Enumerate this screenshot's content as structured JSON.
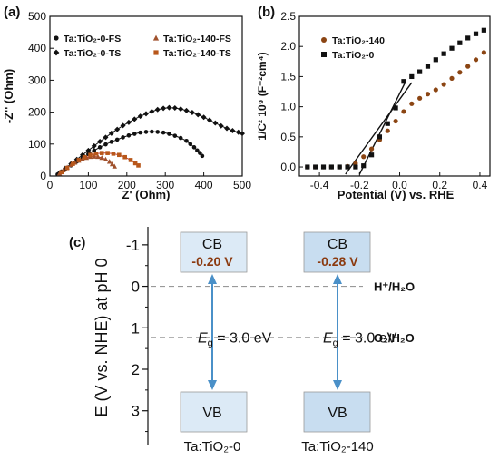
{
  "panels": {
    "a": {
      "label": "(a)",
      "chart_data": {
        "type": "scatter",
        "xlabel": "Z' (Ohm)",
        "ylabel": "-Z'' (Ohm)",
        "xlim": [
          0,
          500
        ],
        "ylim": [
          0,
          500
        ],
        "x_ticks": [
          "0",
          "100",
          "200",
          "300",
          "400",
          "500"
        ],
        "y_ticks": [
          "0",
          "100",
          "200",
          "300",
          "400",
          "500"
        ],
        "legend_position": "top",
        "series": [
          {
            "name": "Ta:TiO₂-0-FS",
            "marker": "circle",
            "color": "#111111",
            "points": [
              [
                20,
                5
              ],
              [
                30,
                14
              ],
              [
                40,
                22
              ],
              [
                55,
                33
              ],
              [
                70,
                45
              ],
              [
                85,
                57
              ],
              [
                100,
                69
              ],
              [
                115,
                80
              ],
              [
                130,
                90
              ],
              [
                145,
                99
              ],
              [
                160,
                107
              ],
              [
                175,
                114
              ],
              [
                190,
                121
              ],
              [
                205,
                127
              ],
              [
                220,
                132
              ],
              [
                235,
                136
              ],
              [
                250,
                138
              ],
              [
                265,
                139
              ],
              [
                280,
                138
              ],
              [
                295,
                136
              ],
              [
                310,
                132
              ],
              [
                325,
                126
              ],
              [
                340,
                119
              ],
              [
                355,
                110
              ],
              [
                365,
                100
              ],
              [
                375,
                90
              ],
              [
                383,
                80
              ],
              [
                390,
                72
              ],
              [
                396,
                63
              ]
            ]
          },
          {
            "name": "Ta:TiO₂-0-TS",
            "marker": "diamond",
            "color": "#111111",
            "points": [
              [
                25,
                10
              ],
              [
                40,
                24
              ],
              [
                55,
                38
              ],
              [
                70,
                52
              ],
              [
                85,
                66
              ],
              [
                100,
                80
              ],
              [
                115,
                94
              ],
              [
                130,
                108
              ],
              [
                145,
                121
              ],
              [
                160,
                134
              ],
              [
                175,
                146
              ],
              [
                190,
                158
              ],
              [
                205,
                168
              ],
              [
                220,
                178
              ],
              [
                235,
                187
              ],
              [
                250,
                195
              ],
              [
                265,
                202
              ],
              [
                280,
                208
              ],
              [
                295,
                212
              ],
              [
                310,
                214
              ],
              [
                325,
                213
              ],
              [
                340,
                210
              ],
              [
                355,
                205
              ],
              [
                370,
                199
              ],
              [
                385,
                192
              ],
              [
                400,
                184
              ],
              [
                415,
                175
              ],
              [
                430,
                166
              ],
              [
                445,
                157
              ],
              [
                460,
                149
              ],
              [
                475,
                142
              ],
              [
                490,
                137
              ],
              [
                500,
                133
              ]
            ]
          },
          {
            "name": "Ta:TiO₂-140-FS",
            "marker": "triangle",
            "color": "#A0522D",
            "points": [
              [
                25,
                8
              ],
              [
                35,
                18
              ],
              [
                45,
                27
              ],
              [
                55,
                35
              ],
              [
                65,
                42
              ],
              [
                75,
                48
              ],
              [
                85,
                53
              ],
              [
                95,
                57
              ],
              [
                105,
                60
              ],
              [
                115,
                61
              ],
              [
                125,
                60
              ],
              [
                135,
                57
              ],
              [
                145,
                52
              ],
              [
                155,
                45
              ],
              [
                162,
                37
              ],
              [
                168,
                30
              ]
            ]
          },
          {
            "name": "Ta:TiO₂-140-TS",
            "marker": "square",
            "color": "#B8571A",
            "points": [
              [
                30,
                12
              ],
              [
                45,
                25
              ],
              [
                60,
                38
              ],
              [
                75,
                50
              ],
              [
                90,
                59
              ],
              [
                105,
                66
              ],
              [
                120,
                70
              ],
              [
                135,
                72
              ],
              [
                150,
                72
              ],
              [
                165,
                70
              ],
              [
                180,
                66
              ],
              [
                195,
                59
              ],
              [
                210,
                50
              ],
              [
                222,
                40
              ],
              [
                230,
                33
              ]
            ]
          }
        ]
      }
    },
    "b": {
      "label": "(b)",
      "chart_data": {
        "type": "scatter",
        "xlabel": "Potential (V) vs. RHE",
        "ylabel": "1/C² 10⁹ (F⁻²cm⁴)",
        "xlim": [
          -0.5,
          0.45
        ],
        "ylim": [
          -0.15,
          2.5
        ],
        "x_ticks": [
          "-0.4",
          "-0.2",
          "0.0",
          "0.2",
          "0.4"
        ],
        "y_ticks": [
          "0.0",
          "0.5",
          "1.0",
          "1.5",
          "2.0",
          "2.5"
        ],
        "legend_position": "top-left",
        "series": [
          {
            "name": "Ta:TiO₂-140",
            "marker": "circle",
            "color": "#8B4513",
            "points": [
              [
                -0.46,
                0.0
              ],
              [
                -0.42,
                0.0
              ],
              [
                -0.38,
                0.0
              ],
              [
                -0.34,
                0.0
              ],
              [
                -0.3,
                0.0
              ],
              [
                -0.26,
                0.01
              ],
              [
                -0.22,
                0.06
              ],
              [
                -0.18,
                0.17
              ],
              [
                -0.14,
                0.3
              ],
              [
                -0.1,
                0.45
              ],
              [
                -0.06,
                0.6
              ],
              [
                -0.02,
                0.76
              ],
              [
                0.02,
                0.92
              ],
              [
                0.06,
                1.05
              ],
              [
                0.1,
                1.14
              ],
              [
                0.14,
                1.21
              ],
              [
                0.18,
                1.28
              ],
              [
                0.22,
                1.37
              ],
              [
                0.26,
                1.47
              ],
              [
                0.3,
                1.57
              ],
              [
                0.34,
                1.67
              ],
              [
                0.38,
                1.78
              ],
              [
                0.42,
                1.9
              ]
            ]
          },
          {
            "name": "Ta:TiO₂-0",
            "marker": "square",
            "color": "#111111",
            "points": [
              [
                -0.46,
                0.0
              ],
              [
                -0.42,
                0.0
              ],
              [
                -0.38,
                0.0
              ],
              [
                -0.34,
                0.0
              ],
              [
                -0.3,
                0.0
              ],
              [
                -0.26,
                0.0
              ],
              [
                -0.22,
                0.0
              ],
              [
                -0.18,
                0.02
              ],
              [
                -0.14,
                0.2
              ],
              [
                -0.1,
                0.5
              ],
              [
                -0.06,
                0.72
              ],
              [
                -0.02,
                0.98
              ],
              [
                0.02,
                1.42
              ],
              [
                0.06,
                1.5
              ],
              [
                0.1,
                1.58
              ],
              [
                0.14,
                1.67
              ],
              [
                0.18,
                1.78
              ],
              [
                0.22,
                1.88
              ],
              [
                0.26,
                1.97
              ],
              [
                0.3,
                2.06
              ],
              [
                0.34,
                2.14
              ],
              [
                0.38,
                2.21
              ],
              [
                0.42,
                2.27
              ]
            ]
          }
        ],
        "fit_lines": [
          {
            "x": [
              -0.27,
              0.06
            ],
            "y": [
              -0.12,
              1.4
            ]
          },
          {
            "x": [
              -0.2,
              0.03
            ],
            "y": [
              -0.12,
              1.42
            ]
          }
        ]
      }
    },
    "c": {
      "label": "(c)",
      "ylabel": "E (V vs. NHE) at pH 0",
      "ylim": [
        -1.15,
        3.4
      ],
      "y_ticks": [
        -1,
        0,
        1,
        2,
        3
      ],
      "y_tick_labels": [
        "-1",
        "0",
        "1",
        "2",
        "3"
      ],
      "levels": [
        {
          "value": 0,
          "label": "H⁺/H₂O"
        },
        {
          "value": 1.23,
          "label": "O₂/H₂O"
        }
      ],
      "materials": [
        {
          "name": "Ta:TiO₂-0",
          "cb_label": "CB",
          "cb_value": "-0.20 V",
          "cb_edge": -0.2,
          "vb_label": "VB",
          "vb_edge": 2.8,
          "gap": "= 3.0 eV",
          "gap_symbol": "E",
          "gap_sub": "g"
        },
        {
          "name": "Ta:TiO₂-140",
          "cb_label": "CB",
          "cb_value": "-0.28 V",
          "cb_edge": -0.28,
          "vb_label": "VB",
          "vb_edge": 2.72,
          "gap": "= 3.0 eV",
          "gap_symbol": "E",
          "gap_sub": "g"
        }
      ],
      "colors": {
        "band_fill": "#c8ddf0",
        "band_fill_light": "#dceaf6",
        "arrow": "#4a90c8",
        "cb_value": "#8B3A0F",
        "dash": "#999999"
      }
    }
  }
}
